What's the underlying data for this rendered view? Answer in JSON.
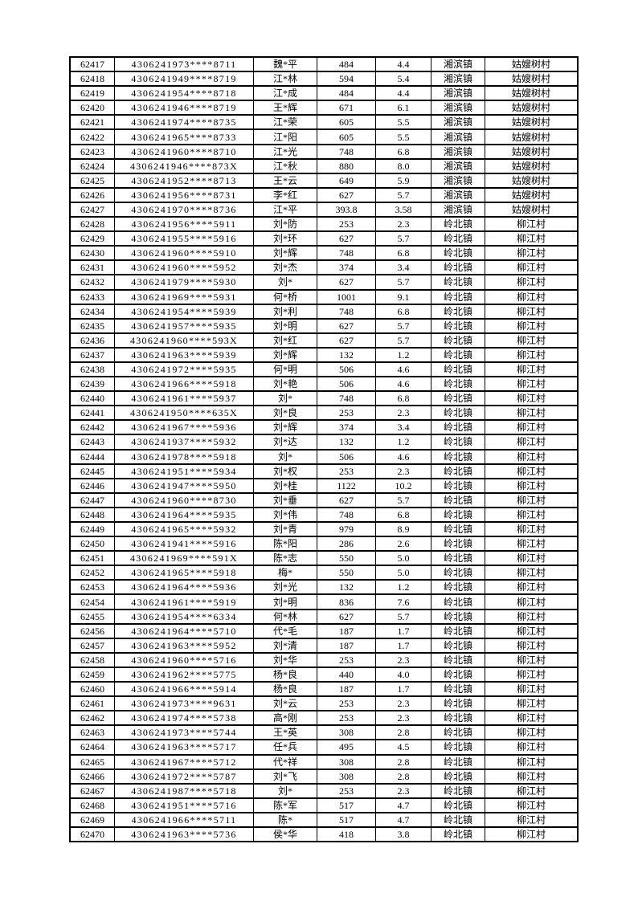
{
  "page": {
    "background_color": "#ffffff",
    "text_color": "#000000",
    "table_border_color": "#000000"
  },
  "table": {
    "row_count": 54,
    "rows": [
      [
        "62417",
        "4306241973****8711",
        "魏*平",
        "484",
        "4.4",
        "湘滨镇",
        "姑嫂树村"
      ],
      [
        "62418",
        "4306241949****8719",
        "江*林",
        "594",
        "5.4",
        "湘滨镇",
        "姑嫂树村"
      ],
      [
        "62419",
        "4306241954****8718",
        "江*成",
        "484",
        "4.4",
        "湘滨镇",
        "姑嫂树村"
      ],
      [
        "62420",
        "4306241946****8719",
        "王*辉",
        "671",
        "6.1",
        "湘滨镇",
        "姑嫂树村"
      ],
      [
        "62421",
        "4306241974****8735",
        "江*荣",
        "605",
        "5.5",
        "湘滨镇",
        "姑嫂树村"
      ],
      [
        "62422",
        "4306241965****8733",
        "江*阳",
        "605",
        "5.5",
        "湘滨镇",
        "姑嫂树村"
      ],
      [
        "62423",
        "4306241960****8710",
        "江*光",
        "748",
        "6.8",
        "湘滨镇",
        "姑嫂树村"
      ],
      [
        "62424",
        "4306241946****873X",
        "江*秋",
        "880",
        "8.0",
        "湘滨镇",
        "姑嫂树村"
      ],
      [
        "62425",
        "4306241952****8713",
        "王*云",
        "649",
        "5.9",
        "湘滨镇",
        "姑嫂树村"
      ],
      [
        "62426",
        "4306241956****8731",
        "李*红",
        "627",
        "5.7",
        "湘滨镇",
        "姑嫂树村"
      ],
      [
        "62427",
        "4306241970****8736",
        "江*平",
        "393.8",
        "3.58",
        "湘滨镇",
        "姑嫂树村"
      ],
      [
        "62428",
        "4306241956****5911",
        "刘*防",
        "253",
        "2.3",
        "岭北镇",
        "柳江村"
      ],
      [
        "62429",
        "4306241955****5916",
        "刘*环",
        "627",
        "5.7",
        "岭北镇",
        "柳江村"
      ],
      [
        "62430",
        "4306241960****5910",
        "刘*辉",
        "748",
        "6.8",
        "岭北镇",
        "柳江村"
      ],
      [
        "62431",
        "4306241960****5952",
        "刘*杰",
        "374",
        "3.4",
        "岭北镇",
        "柳江村"
      ],
      [
        "62432",
        "4306241979****5930",
        "刘*",
        "627",
        "5.7",
        "岭北镇",
        "柳江村"
      ],
      [
        "62433",
        "4306241969****5931",
        "何*桥",
        "1001",
        "9.1",
        "岭北镇",
        "柳江村"
      ],
      [
        "62434",
        "4306241954****5939",
        "刘*利",
        "748",
        "6.8",
        "岭北镇",
        "柳江村"
      ],
      [
        "62435",
        "4306241957****5935",
        "刘*明",
        "627",
        "5.7",
        "岭北镇",
        "柳江村"
      ],
      [
        "62436",
        "4306241960****593X",
        "刘*红",
        "627",
        "5.7",
        "岭北镇",
        "柳江村"
      ],
      [
        "62437",
        "4306241963****5939",
        "刘*辉",
        "132",
        "1.2",
        "岭北镇",
        "柳江村"
      ],
      [
        "62438",
        "4306241972****5935",
        "何*明",
        "506",
        "4.6",
        "岭北镇",
        "柳江村"
      ],
      [
        "62439",
        "4306241966****5918",
        "刘*艳",
        "506",
        "4.6",
        "岭北镇",
        "柳江村"
      ],
      [
        "62440",
        "4306241961****5937",
        "刘*",
        "748",
        "6.8",
        "岭北镇",
        "柳江村"
      ],
      [
        "62441",
        "4306241950****635X",
        "刘*良",
        "253",
        "2.3",
        "岭北镇",
        "柳江村"
      ],
      [
        "62442",
        "4306241967****5936",
        "刘*辉",
        "374",
        "3.4",
        "岭北镇",
        "柳江村"
      ],
      [
        "62443",
        "4306241937****5932",
        "刘*达",
        "132",
        "1.2",
        "岭北镇",
        "柳江村"
      ],
      [
        "62444",
        "4306241978****5918",
        "刘*",
        "506",
        "4.6",
        "岭北镇",
        "柳江村"
      ],
      [
        "62445",
        "4306241951****5934",
        "刘*权",
        "253",
        "2.3",
        "岭北镇",
        "柳江村"
      ],
      [
        "62446",
        "4306241947****5950",
        "刘*桂",
        "1122",
        "10.2",
        "岭北镇",
        "柳江村"
      ],
      [
        "62447",
        "4306241960****8730",
        "刘*垂",
        "627",
        "5.7",
        "岭北镇",
        "柳江村"
      ],
      [
        "62448",
        "4306241964****5935",
        "刘*伟",
        "748",
        "6.8",
        "岭北镇",
        "柳江村"
      ],
      [
        "62449",
        "4306241965****5932",
        "刘*青",
        "979",
        "8.9",
        "岭北镇",
        "柳江村"
      ],
      [
        "62450",
        "4306241941****5916",
        "陈*阳",
        "286",
        "2.6",
        "岭北镇",
        "柳江村"
      ],
      [
        "62451",
        "4306241969****591X",
        "陈*志",
        "550",
        "5.0",
        "岭北镇",
        "柳江村"
      ],
      [
        "62452",
        "4306241965****5918",
        "梅*",
        "550",
        "5.0",
        "岭北镇",
        "柳江村"
      ],
      [
        "62453",
        "4306241964****5936",
        "刘*光",
        "132",
        "1.2",
        "岭北镇",
        "柳江村"
      ],
      [
        "62454",
        "4306241961****5919",
        "刘*明",
        "836",
        "7.6",
        "岭北镇",
        "柳江村"
      ],
      [
        "62455",
        "4306241954****6334",
        "何*林",
        "627",
        "5.7",
        "岭北镇",
        "柳江村"
      ],
      [
        "62456",
        "4306241964****5710",
        "代*毛",
        "187",
        "1.7",
        "岭北镇",
        "柳江村"
      ],
      [
        "62457",
        "4306241963****5952",
        "刘*清",
        "187",
        "1.7",
        "岭北镇",
        "柳江村"
      ],
      [
        "62458",
        "4306241960****5716",
        "刘*华",
        "253",
        "2.3",
        "岭北镇",
        "柳江村"
      ],
      [
        "62459",
        "4306241962****5775",
        "杨*良",
        "440",
        "4.0",
        "岭北镇",
        "柳江村"
      ],
      [
        "62460",
        "4306241966****5914",
        "杨*良",
        "187",
        "1.7",
        "岭北镇",
        "柳江村"
      ],
      [
        "62461",
        "4306241973****9631",
        "刘*云",
        "253",
        "2.3",
        "岭北镇",
        "柳江村"
      ],
      [
        "62462",
        "4306241974****5738",
        "高*刚",
        "253",
        "2.3",
        "岭北镇",
        "柳江村"
      ],
      [
        "62463",
        "4306241973****5744",
        "王*英",
        "308",
        "2.8",
        "岭北镇",
        "柳江村"
      ],
      [
        "62464",
        "4306241963****5717",
        "任*兵",
        "495",
        "4.5",
        "岭北镇",
        "柳江村"
      ],
      [
        "62465",
        "4306241967****5712",
        "代*祥",
        "308",
        "2.8",
        "岭北镇",
        "柳江村"
      ],
      [
        "62466",
        "4306241972****5787",
        "刘*飞",
        "308",
        "2.8",
        "岭北镇",
        "柳江村"
      ],
      [
        "62467",
        "4306241987****5718",
        "刘*",
        "253",
        "2.3",
        "岭北镇",
        "柳江村"
      ],
      [
        "62468",
        "4306241951****5716",
        "陈*军",
        "517",
        "4.7",
        "岭北镇",
        "柳江村"
      ],
      [
        "62469",
        "4306241966****5711",
        "陈*",
        "517",
        "4.7",
        "岭北镇",
        "柳江村"
      ],
      [
        "62470",
        "4306241963****5736",
        "侯*华",
        "418",
        "3.8",
        "岭北镇",
        "柳江村"
      ]
    ]
  }
}
